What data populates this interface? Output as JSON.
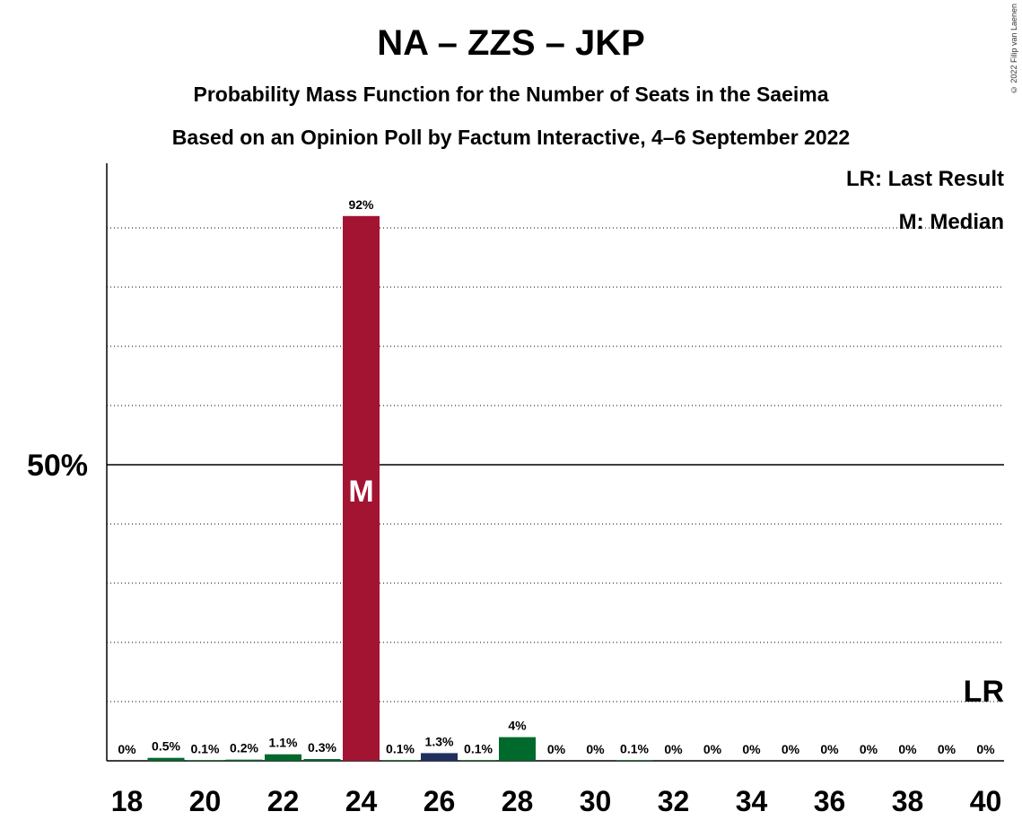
{
  "title": "NA – ZZS – JKP",
  "subtitle1": "Probability Mass Function for the Number of Seats in the Saeima",
  "subtitle2": "Based on an Opinion Poll by Factum Interactive, 4–6 September 2022",
  "copyright": "© 2022 Filip van Laenen",
  "legend": {
    "last_result": "LR: Last Result",
    "median": "M: Median"
  },
  "colors": {
    "na": "#A31432",
    "zzs": "#006A2D",
    "jkp": "#1F2F5E",
    "bar_default": "#006A2D"
  },
  "chart_data": {
    "type": "bar",
    "x": [
      18,
      19,
      20,
      21,
      22,
      23,
      24,
      25,
      26,
      27,
      28,
      29,
      30,
      31,
      32,
      33,
      34,
      35,
      36,
      37,
      38,
      39,
      40
    ],
    "values": [
      0,
      0.5,
      0.1,
      0.2,
      1.1,
      0.3,
      92,
      0.1,
      1.3,
      0.1,
      4,
      0,
      0,
      0.1,
      0,
      0,
      0,
      0,
      0,
      0,
      0,
      0,
      0
    ],
    "labels": [
      "0%",
      "0.5%",
      "0.1%",
      "0.2%",
      "1.1%",
      "0.3%",
      "92%",
      "0.1%",
      "1.3%",
      "0.1%",
      "4%",
      "0%",
      "0%",
      "0.1%",
      "0%",
      "0%",
      "0%",
      "0%",
      "0%",
      "0%",
      "0%",
      "0%",
      "0%"
    ],
    "bar_colors": [
      "#006A2D",
      "#006A2D",
      "#006A2D",
      "#006A2D",
      "#006A2D",
      "#006A2D",
      "#A31432",
      "#006A2D",
      "#1F2F5E",
      "#006A2D",
      "#006A2D",
      "#006A2D",
      "#006A2D",
      "#006A2D",
      "#006A2D",
      "#006A2D",
      "#006A2D",
      "#006A2D",
      "#006A2D",
      "#006A2D",
      "#006A2D",
      "#006A2D",
      "#006A2D"
    ],
    "x_tick_labels": [
      "18",
      "20",
      "22",
      "24",
      "26",
      "28",
      "30",
      "32",
      "34",
      "36",
      "38",
      "40"
    ],
    "x_ticks": [
      18,
      20,
      22,
      24,
      26,
      28,
      30,
      32,
      34,
      36,
      38,
      40
    ],
    "y_tick_label": "50%",
    "y_tick_value": 50,
    "ylim": [
      0,
      100
    ],
    "median_seat": 24,
    "median_label": "M",
    "last_result_seat": 40,
    "last_result_label": "LR",
    "grid": true
  }
}
